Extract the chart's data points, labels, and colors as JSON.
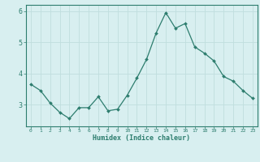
{
  "x": [
    0,
    1,
    2,
    3,
    4,
    5,
    6,
    7,
    8,
    9,
    10,
    11,
    12,
    13,
    14,
    15,
    16,
    17,
    18,
    19,
    20,
    21,
    22,
    23
  ],
  "y": [
    3.65,
    3.45,
    3.05,
    2.75,
    2.55,
    2.9,
    2.9,
    3.25,
    2.8,
    2.85,
    3.3,
    3.85,
    4.45,
    5.3,
    5.95,
    5.45,
    5.6,
    4.85,
    4.65,
    4.4,
    3.9,
    3.75,
    3.45,
    3.2
  ],
  "xlabel": "Humidex (Indice chaleur)",
  "ylabel": "",
  "ylim": [
    2.3,
    6.2
  ],
  "xlim": [
    -0.5,
    23.5
  ],
  "line_color": "#2d7d6e",
  "marker_color": "#2d7d6e",
  "bg_color": "#d8eff0",
  "grid_color": "#c0dede",
  "axis_color": "#2d7d6e",
  "tick_color": "#2d7d6e",
  "label_color": "#2d7d6e",
  "yticks": [
    3,
    4,
    5,
    6
  ],
  "xticks": [
    0,
    1,
    2,
    3,
    4,
    5,
    6,
    7,
    8,
    9,
    10,
    11,
    12,
    13,
    14,
    15,
    16,
    17,
    18,
    19,
    20,
    21,
    22,
    23
  ]
}
